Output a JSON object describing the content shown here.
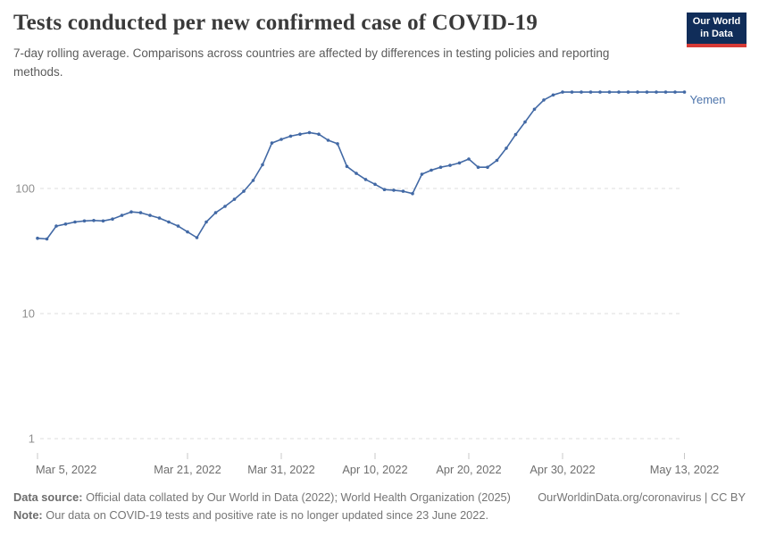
{
  "header": {
    "title": "Tests conducted per new confirmed case of COVID-19",
    "subtitle": "7-day rolling average. Comparisons across countries are affected by differences in testing policies and reporting methods."
  },
  "logo": {
    "line1": "Our World",
    "line2": "in Data",
    "bg_color": "#102d59",
    "accent_color": "#d73a36"
  },
  "chart_data": {
    "type": "line",
    "title": "Tests conducted per new confirmed case of COVID-19",
    "yscale": "log",
    "y_ticks": [
      1,
      10,
      100
    ],
    "ylim": [
      1,
      674
    ],
    "grid": "dashed-horizontal",
    "legend_position": "end-of-line",
    "x_ticks": [
      {
        "label": "Mar 5, 2022",
        "index": 0
      },
      {
        "label": "Mar 21, 2022",
        "index": 16
      },
      {
        "label": "Mar 31, 2022",
        "index": 26
      },
      {
        "label": "Apr 10, 2022",
        "index": 36
      },
      {
        "label": "Apr 20, 2022",
        "index": 46
      },
      {
        "label": "Apr 30, 2022",
        "index": 56
      },
      {
        "label": "May 13, 2022",
        "index": 69
      }
    ],
    "series": [
      {
        "name": "Yemen",
        "color": "#4269a5",
        "label_color": "#4d74ab",
        "dates": [
          "2022-03-05",
          "2022-03-06",
          "2022-03-07",
          "2022-03-08",
          "2022-03-09",
          "2022-03-10",
          "2022-03-11",
          "2022-03-12",
          "2022-03-13",
          "2022-03-14",
          "2022-03-15",
          "2022-03-16",
          "2022-03-17",
          "2022-03-18",
          "2022-03-19",
          "2022-03-20",
          "2022-03-21",
          "2022-03-22",
          "2022-03-23",
          "2022-03-24",
          "2022-03-25",
          "2022-03-26",
          "2022-03-27",
          "2022-03-28",
          "2022-03-29",
          "2022-03-30",
          "2022-03-31",
          "2022-04-01",
          "2022-04-02",
          "2022-04-03",
          "2022-04-04",
          "2022-04-05",
          "2022-04-06",
          "2022-04-07",
          "2022-04-08",
          "2022-04-09",
          "2022-04-10",
          "2022-04-11",
          "2022-04-12",
          "2022-04-13",
          "2022-04-14",
          "2022-04-15",
          "2022-04-16",
          "2022-04-17",
          "2022-04-18",
          "2022-04-19",
          "2022-04-20",
          "2022-04-21",
          "2022-04-22",
          "2022-04-23",
          "2022-04-24",
          "2022-04-25",
          "2022-04-26",
          "2022-04-27",
          "2022-04-28",
          "2022-04-29",
          "2022-04-30",
          "2022-05-01",
          "2022-05-02",
          "2022-05-03",
          "2022-05-04",
          "2022-05-05",
          "2022-05-06",
          "2022-05-07",
          "2022-05-08",
          "2022-05-09",
          "2022-05-10",
          "2022-05-11",
          "2022-05-12",
          "2022-05-13"
        ],
        "values": [
          40,
          39.5,
          50,
          52,
          54,
          55,
          55.5,
          55,
          57,
          61,
          65,
          64,
          61,
          58,
          54,
          50,
          45,
          40.5,
          54,
          64,
          72,
          82,
          95,
          116,
          155,
          231,
          247,
          262,
          272,
          280,
          272,
          243,
          228,
          150,
          132,
          118,
          108,
          98,
          97,
          95,
          91,
          130,
          140,
          148,
          153,
          160,
          172,
          148,
          148,
          168,
          210,
          270,
          340,
          430,
          510,
          560,
          590,
          590,
          590,
          590,
          590,
          590,
          590,
          590,
          590,
          590,
          590,
          590,
          590,
          590
        ]
      }
    ]
  },
  "footer": {
    "source_bold": "Data source:",
    "source_text": " Official data collated by Our World in Data (2022); World Health Organization (2025)",
    "link_text": "OurWorldinData.org/coronavirus | CC BY",
    "note_bold": "Note:",
    "note_text": " Our data on COVID-19 tests and positive rate is no longer updated since 23 June 2022."
  },
  "colors": {
    "grid": "#dcdcdc",
    "tick": "#c8c8c8",
    "y_label": "#8f8f8f",
    "x_label": "#6e6e6e"
  }
}
